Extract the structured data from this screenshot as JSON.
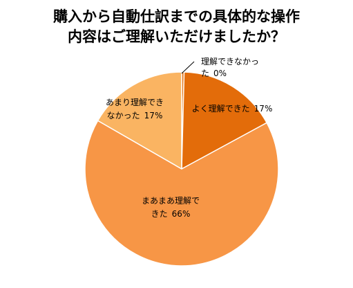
{
  "chart_data": {
    "type": "pie",
    "title_lines": [
      "購入から自動仕訳までの具体的な操作",
      "内容はご理解いただけましたか？"
    ],
    "slices": [
      {
        "label_lines": [
          "理解できなかっ",
          "た"
        ],
        "percent_label": "0%",
        "value": 0.4,
        "color": "#e36c0a"
      },
      {
        "label_lines": [
          "よく理解できた"
        ],
        "percent_label": "17%",
        "value": 16.7,
        "color": "#e36c0a"
      },
      {
        "label_lines": [
          "まあまあ理解で",
          "きた"
        ],
        "percent_label": "66%",
        "value": 66.2,
        "color": "#f79646"
      },
      {
        "label_lines": [
          "あまり理解でき",
          "なかった"
        ],
        "percent_label": "17%",
        "value": 16.7,
        "color": "#fab462"
      }
    ],
    "start_angle": "12 o'clock",
    "direction": "clockwise",
    "legend": "none"
  }
}
